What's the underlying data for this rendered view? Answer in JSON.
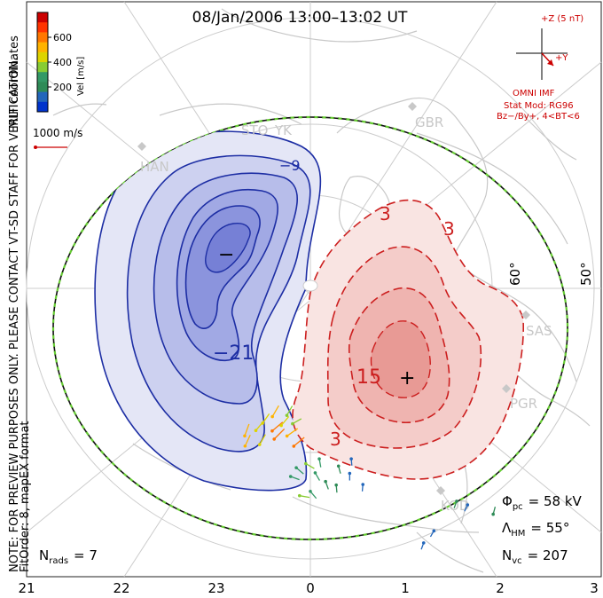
{
  "chart_data": {
    "type": "polar-convection-map",
    "title": "08/Jan/2006 13:00–13:02 UT",
    "side_notes": [
      "MLT coordinates",
      "NOTE: FOR PREVIEW PURPOSES ONLY. PLEASE CONTACT VT-SD STAFF FOR VERIFICATION.",
      "FitOrder: 8, mapEX format"
    ],
    "colorbar": {
      "label": "Vel [m/s]",
      "ticks": [
        "600",
        "400",
        "200"
      ],
      "colors": [
        "#cc0000",
        "#ff3300",
        "#ff7700",
        "#ffb300",
        "#ddd400",
        "#88cc33",
        "#339966",
        "#2e8b57",
        "#2266bb",
        "#0033cc"
      ]
    },
    "vector_scale": "1000 m/s",
    "imf": {
      "scale_label": "+Z (5 nT)",
      "y_label": "+Y",
      "source": "OMNI IMF",
      "model": "Stat Mod: RG96",
      "condition": "Bz−/By+, 4<BT<6"
    },
    "stations": [
      "STO",
      "YK",
      "GBR",
      "HAN",
      "SAS",
      "PGR",
      "KOD"
    ],
    "latitude_labels": [
      "60°",
      "50°"
    ],
    "potential_contours": {
      "negative_labels": [
        "−9",
        "−21"
      ],
      "positive_labels": [
        "3",
        "3",
        "15",
        "3"
      ],
      "min_marker": "−",
      "max_marker": "+"
    },
    "stats": {
      "phi_pc": "Φ",
      "phi_pc_sub": "pc",
      "phi_pc_value": "= 58 kV",
      "lambda_hm": "Λ",
      "lambda_hm_sub": "HM",
      "lambda_hm_value": "= 55°",
      "n_vc": "N",
      "n_vc_sub": "vc",
      "n_vc_value": "= 207",
      "n_rads": "N",
      "n_rads_sub": "rads",
      "n_rads_value": "= 7"
    },
    "x_ticks": [
      "21",
      "22",
      "23",
      "0",
      "1",
      "2",
      "3"
    ],
    "vectors": [
      {
        "mlt": 22.6,
        "lat": 73.5,
        "vel": 420,
        "az": 40
      },
      {
        "mlt": 22.7,
        "lat": 74.5,
        "vel": 380,
        "az": 35
      },
      {
        "mlt": 22.9,
        "lat": 75.5,
        "vel": 460,
        "az": 30
      },
      {
        "mlt": 23.0,
        "lat": 74.0,
        "vel": 520,
        "az": 50
      },
      {
        "mlt": 23.1,
        "lat": 73.2,
        "vel": 560,
        "az": 45
      },
      {
        "mlt": 23.2,
        "lat": 74.8,
        "vel": 400,
        "az": 40
      },
      {
        "mlt": 23.3,
        "lat": 76.0,
        "vel": 350,
        "az": 30
      },
      {
        "mlt": 23.4,
        "lat": 73.8,
        "vel": 480,
        "az": 55
      },
      {
        "mlt": 23.5,
        "lat": 75.2,
        "vel": 300,
        "az": 60
      },
      {
        "mlt": 23.6,
        "lat": 72.8,
        "vel": 520,
        "az": 50
      },
      {
        "mlt": 22.4,
        "lat": 72.5,
        "vel": 450,
        "az": 20
      },
      {
        "mlt": 22.5,
        "lat": 71.5,
        "vel": 430,
        "az": 25
      },
      {
        "mlt": 22.8,
        "lat": 72.2,
        "vel": 390,
        "az": 30
      },
      {
        "mlt": 23.9,
        "lat": 71.0,
        "vel": 280,
        "az": 120
      },
      {
        "mlt": 23.7,
        "lat": 70.5,
        "vel": 260,
        "az": 130
      },
      {
        "mlt": 23.6,
        "lat": 69.5,
        "vel": 250,
        "az": 110
      },
      {
        "mlt": 0.1,
        "lat": 70.0,
        "vel": 220,
        "az": 150
      },
      {
        "mlt": 0.3,
        "lat": 69.0,
        "vel": 180,
        "az": 160
      },
      {
        "mlt": 0.2,
        "lat": 71.5,
        "vel": 200,
        "az": 170
      },
      {
        "mlt": 0.5,
        "lat": 68.5,
        "vel": 140,
        "az": 175
      },
      {
        "mlt": 0.6,
        "lat": 70.5,
        "vel": 150,
        "az": 165
      },
      {
        "mlt": 0.0,
        "lat": 68.0,
        "vel": 240,
        "az": 140
      },
      {
        "mlt": 23.8,
        "lat": 67.5,
        "vel": 300,
        "az": 100
      },
      {
        "mlt": 0.8,
        "lat": 69.5,
        "vel": 110,
        "az": 180
      },
      {
        "mlt": 1.0,
        "lat": 68.0,
        "vel": 100,
        "az": 185
      },
      {
        "mlt": 0.9,
        "lat": 71.0,
        "vel": 90,
        "az": 175
      },
      {
        "mlt": 2.3,
        "lat": 62.0,
        "vel": 120,
        "az": 200
      },
      {
        "mlt": 2.4,
        "lat": 61.0,
        "vel": 110,
        "az": 205
      },
      {
        "mlt": 1.8,
        "lat": 60.5,
        "vel": 90,
        "az": 210
      },
      {
        "mlt": 1.6,
        "lat": 59.8,
        "vel": 100,
        "az": 200
      },
      {
        "mlt": 2.6,
        "lat": 58.5,
        "vel": 150,
        "az": 15
      }
    ]
  }
}
